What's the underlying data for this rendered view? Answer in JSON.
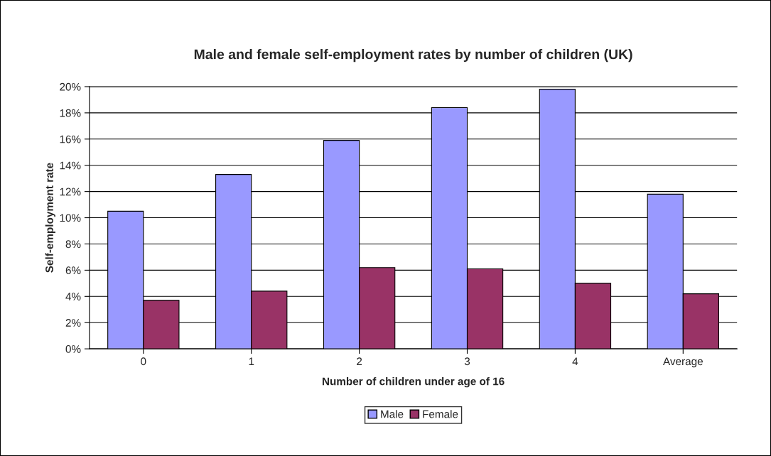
{
  "chart_data": {
    "type": "bar",
    "title": "Male and female self-employment rates by number of children (UK)",
    "xlabel": "Number of children under age of 16",
    "ylabel": "Self-employment rate",
    "categories": [
      "0",
      "1",
      "2",
      "3",
      "4",
      "Average"
    ],
    "series": [
      {
        "name": "Male",
        "color": "#9999ff",
        "values": [
          10.5,
          13.3,
          15.9,
          18.4,
          19.8,
          11.8
        ]
      },
      {
        "name": "Female",
        "color": "#993366",
        "values": [
          3.7,
          4.4,
          6.2,
          6.1,
          5.0,
          4.2
        ]
      }
    ],
    "ylim": [
      0,
      20
    ],
    "yticks": [
      {
        "value": 0,
        "label": "0%"
      },
      {
        "value": 2,
        "label": "2%"
      },
      {
        "value": 4,
        "label": "4%"
      },
      {
        "value": 6,
        "label": "6%"
      },
      {
        "value": 8,
        "label": "8%"
      },
      {
        "value": 10,
        "label": "10%"
      },
      {
        "value": 12,
        "label": "12%"
      },
      {
        "value": 14,
        "label": "14%"
      },
      {
        "value": 16,
        "label": "16%"
      },
      {
        "value": 18,
        "label": "18%"
      },
      {
        "value": 20,
        "label": "20%"
      }
    ],
    "grid": "y",
    "legend": "bottom"
  }
}
